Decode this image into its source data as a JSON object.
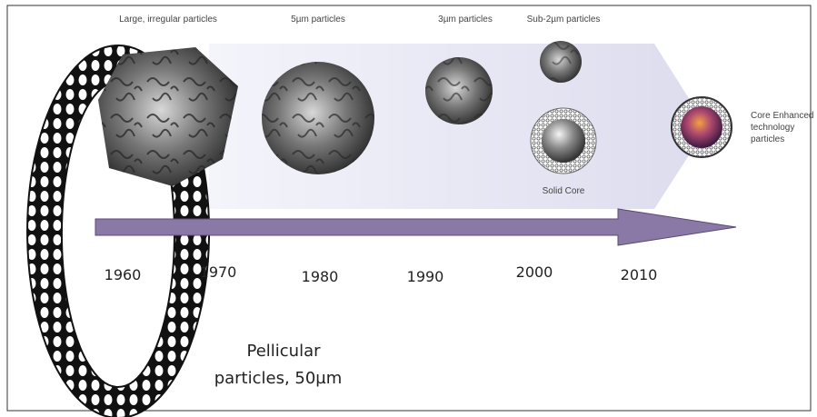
{
  "particles": [
    {
      "label": "Large, irregular particles"
    },
    {
      "label": "5µm particles"
    },
    {
      "label": "3µm particles"
    },
    {
      "label": "Sub-2µm particles"
    },
    {
      "label": "Solid Core"
    }
  ],
  "core_enhanced": {
    "lines": [
      "Core Enhanced",
      "technology",
      "particles"
    ]
  },
  "timeline": {
    "years": [
      "1960",
      "1970",
      "1980",
      "1990",
      "2000",
      "2010"
    ]
  },
  "pellicular": {
    "lines": [
      "Pellicular",
      "particles, 50µm"
    ]
  }
}
